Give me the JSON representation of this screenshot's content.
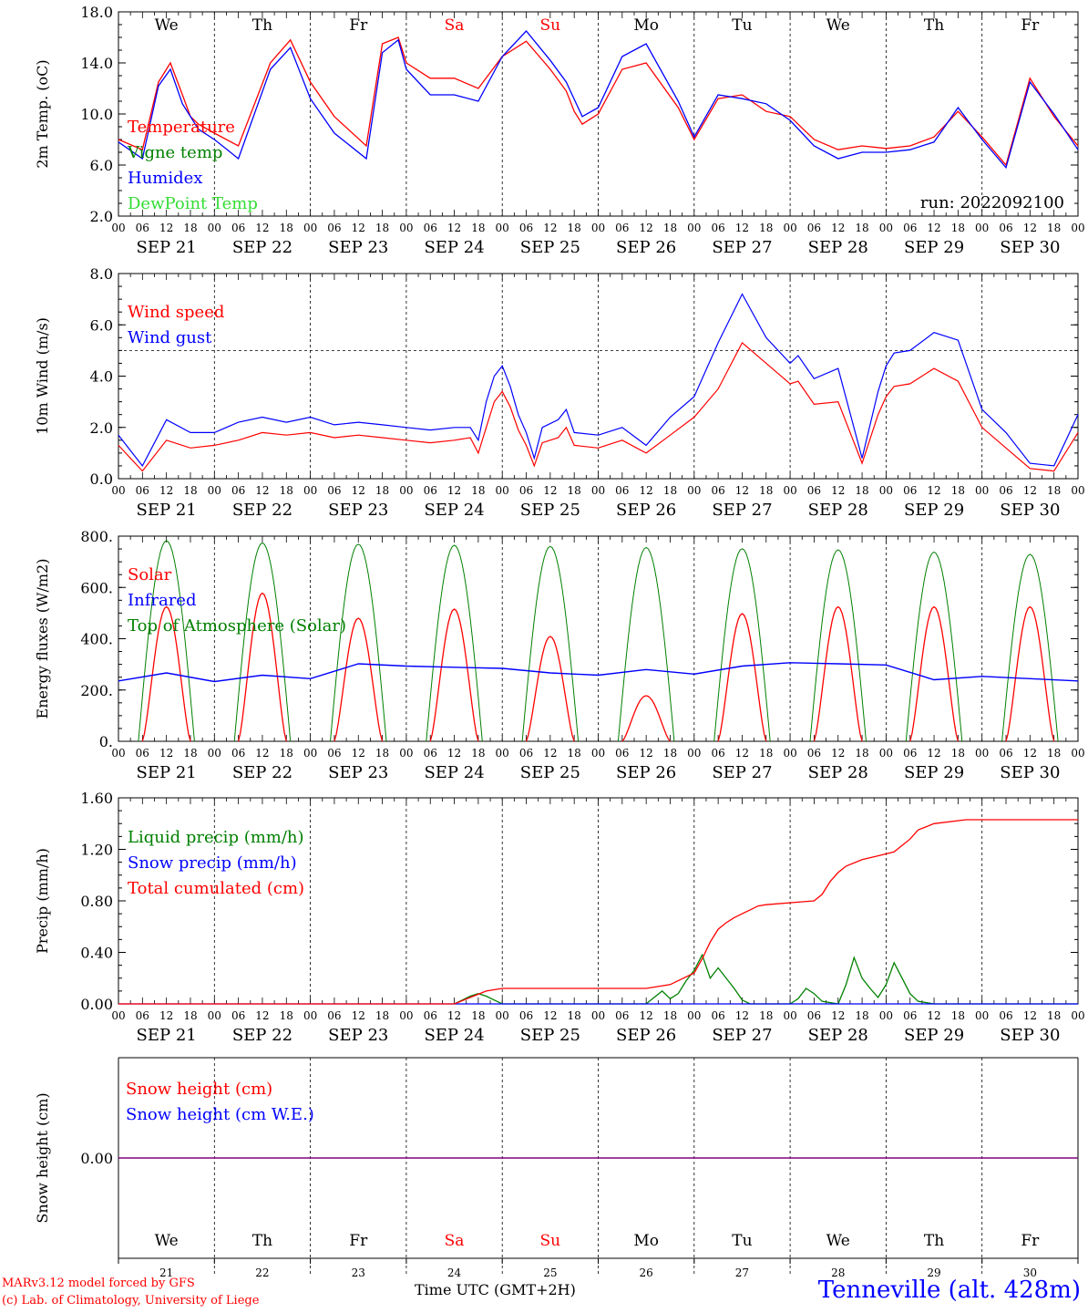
{
  "run_label": "run: 2022092100",
  "footer": {
    "credit_line1": "MARv3.12 model forced by GFS",
    "credit_line2": "(c) Lab. of Climatology, University of Liege",
    "xlabel": "Time UTC (GMT+2H)",
    "station": "Tenneville (alt. 428m)"
  },
  "days": [
    {
      "abbr": "We",
      "date": "SEP 21",
      "num": "21",
      "weekend": false
    },
    {
      "abbr": "Th",
      "date": "SEP 22",
      "num": "22",
      "weekend": false
    },
    {
      "abbr": "Fr",
      "date": "SEP 23",
      "num": "23",
      "weekend": false
    },
    {
      "abbr": "Sa",
      "date": "SEP 24",
      "num": "24",
      "weekend": true
    },
    {
      "abbr": "Su",
      "date": "SEP 25",
      "num": "25",
      "weekend": true
    },
    {
      "abbr": "Mo",
      "date": "SEP 26",
      "num": "26",
      "weekend": false
    },
    {
      "abbr": "Tu",
      "date": "SEP 27",
      "num": "27",
      "weekend": false
    },
    {
      "abbr": "We",
      "date": "SEP 28",
      "num": "28",
      "weekend": false
    },
    {
      "abbr": "Th",
      "date": "SEP 29",
      "num": "29",
      "weekend": false
    },
    {
      "abbr": "Fr",
      "date": "SEP 30",
      "num": "30",
      "weekend": false
    }
  ],
  "hour_ticks": [
    "00",
    "06",
    "12",
    "18"
  ],
  "end_hour_tick": "00",
  "colors": {
    "red": "#ff0000",
    "blue": "#0000ff",
    "darkgreen": "#008000",
    "lightgreen": "#33dd33",
    "purple": "#800080",
    "weekend": "#ff0000"
  },
  "chart_data": [
    {
      "id": "temp",
      "type": "line",
      "ylabel": "2m Temp. (oC)",
      "ylim": [
        2.0,
        18.0
      ],
      "yticks": [
        "2.0",
        "6.0",
        "10.0",
        "14.0",
        "18.0"
      ],
      "x_unit": "hours since SEP 21 00 UTC",
      "series": [
        {
          "name": "Temperature",
          "color": "#ff0000",
          "x": [
            0,
            6,
            10,
            13,
            16,
            18,
            20,
            24,
            30,
            38,
            43,
            48,
            54,
            62,
            66,
            70,
            72,
            78,
            84,
            90,
            96,
            102,
            108,
            112,
            114,
            116,
            120,
            126,
            132,
            140,
            144,
            150,
            156,
            162,
            168,
            174,
            180,
            186,
            192,
            198,
            204,
            210,
            216,
            222,
            228,
            234,
            240
          ],
          "y": [
            8,
            7.2,
            12.5,
            14,
            11.5,
            9.8,
            9.2,
            8.5,
            7.5,
            14,
            15.8,
            12.5,
            9.8,
            7.5,
            15.5,
            16,
            14,
            12.8,
            12.8,
            12,
            14.5,
            15.7,
            13.5,
            11.8,
            10.2,
            9.2,
            10,
            13.5,
            14,
            10.5,
            8,
            11.2,
            11.5,
            10.2,
            9.8,
            8,
            7.2,
            7.5,
            7.3,
            7.5,
            8.2,
            10.2,
            8.2,
            6,
            12.8,
            9.8,
            7.5
          ]
        },
        {
          "name": "Humidex",
          "color": "#0000ff",
          "x": [
            0,
            6,
            10,
            13,
            16,
            20,
            24,
            30,
            38,
            43,
            48,
            54,
            62,
            66,
            70,
            72,
            78,
            84,
            90,
            96,
            102,
            108,
            112,
            116,
            120,
            126,
            132,
            140,
            144,
            150,
            156,
            162,
            168,
            174,
            180,
            186,
            192,
            198,
            204,
            210,
            216,
            222,
            228,
            234,
            240
          ],
          "y": [
            7.8,
            6.5,
            12.2,
            13.5,
            10.8,
            8.8,
            8,
            6.5,
            13.5,
            15.2,
            11.2,
            8.5,
            6.5,
            14.8,
            15.8,
            13.5,
            11.5,
            11.5,
            11,
            14.5,
            16.5,
            14.2,
            12.5,
            9.8,
            10.5,
            14.5,
            15.5,
            11,
            8.2,
            11.5,
            11.2,
            10.8,
            9.5,
            7.5,
            6.5,
            7,
            7,
            7.2,
            7.8,
            10.5,
            8,
            5.8,
            12.5,
            10,
            7.2
          ]
        }
      ]
    },
    {
      "id": "wind",
      "type": "line",
      "ylabel": "10m Wind (m/s)",
      "ylim": [
        0.0,
        8.0
      ],
      "yticks": [
        "0.0",
        "2.0",
        "4.0",
        "6.0",
        "8.0"
      ],
      "reference_line": 5.0,
      "series": [
        {
          "name": "Wind speed",
          "color": "#ff0000",
          "x": [
            0,
            6,
            12,
            18,
            24,
            30,
            36,
            42,
            48,
            54,
            60,
            66,
            72,
            78,
            84,
            88,
            90,
            92,
            94,
            96,
            98,
            100,
            102,
            104,
            106,
            110,
            112,
            114,
            120,
            126,
            132,
            138,
            144,
            150,
            156,
            162,
            168,
            170,
            174,
            180,
            186,
            190,
            192,
            194,
            198,
            204,
            210,
            216,
            222,
            228,
            234,
            240
          ],
          "y": [
            1.3,
            0.3,
            1.5,
            1.2,
            1.3,
            1.5,
            1.8,
            1.7,
            1.8,
            1.6,
            1.7,
            1.6,
            1.5,
            1.4,
            1.5,
            1.6,
            1.0,
            2.0,
            3.0,
            3.4,
            2.8,
            1.9,
            1.3,
            0.5,
            1.4,
            1.6,
            2.0,
            1.3,
            1.2,
            1.5,
            1.0,
            1.7,
            2.4,
            3.5,
            5.3,
            4.5,
            3.7,
            3.8,
            2.9,
            3.0,
            0.6,
            2.5,
            3.2,
            3.6,
            3.7,
            4.3,
            3.8,
            2.0,
            1.2,
            0.4,
            0.3,
            1.8
          ]
        },
        {
          "name": "Wind gust",
          "color": "#0000ff",
          "x": [
            0,
            6,
            12,
            18,
            24,
            30,
            36,
            42,
            48,
            54,
            60,
            66,
            72,
            78,
            84,
            88,
            90,
            92,
            94,
            96,
            98,
            100,
            102,
            104,
            106,
            110,
            112,
            114,
            120,
            126,
            132,
            138,
            144,
            150,
            156,
            162,
            168,
            170,
            174,
            180,
            186,
            190,
            192,
            194,
            198,
            204,
            210,
            216,
            222,
            228,
            234,
            240
          ],
          "y": [
            1.7,
            0.5,
            2.3,
            1.8,
            1.8,
            2.2,
            2.4,
            2.2,
            2.4,
            2.1,
            2.2,
            2.1,
            2.0,
            1.9,
            2.0,
            2.0,
            1.5,
            3.0,
            4.0,
            4.4,
            3.6,
            2.5,
            1.8,
            0.8,
            2.0,
            2.3,
            2.7,
            1.8,
            1.7,
            2.0,
            1.3,
            2.4,
            3.2,
            5.3,
            7.2,
            5.5,
            4.5,
            4.8,
            3.9,
            4.3,
            0.8,
            3.4,
            4.4,
            4.9,
            5.0,
            5.7,
            5.4,
            2.7,
            1.8,
            0.6,
            0.5,
            2.5
          ]
        }
      ]
    },
    {
      "id": "energy",
      "type": "line",
      "ylabel": "Energy fluxes (W/m2)",
      "ylim": [
        0,
        900
      ],
      "yticks": [
        "0.",
        "200.",
        "400.",
        "600.",
        "800."
      ],
      "series": [
        {
          "name": "Solar",
          "color": "#ff0000",
          "daily_peak": [
            590,
            650,
            540,
            580,
            460,
            200,
            560,
            590,
            590,
            590
          ]
        },
        {
          "name": "Infrared",
          "color": "#0000ff",
          "x": [
            0,
            12,
            24,
            36,
            48,
            60,
            72,
            84,
            96,
            108,
            120,
            132,
            144,
            156,
            168,
            180,
            192,
            204,
            216,
            228,
            240
          ],
          "y": [
            265,
            300,
            262,
            290,
            275,
            340,
            330,
            325,
            320,
            300,
            290,
            315,
            295,
            330,
            345,
            340,
            335,
            270,
            285,
            275,
            265
          ]
        },
        {
          "name": "Top of Atmosphere (Solar)",
          "color": "#008000",
          "daily_peak": [
            880,
            870,
            865,
            860,
            855,
            850,
            845,
            840,
            830,
            820
          ]
        }
      ]
    },
    {
      "id": "precip",
      "type": "line",
      "ylabel": "Precip (mm/h)",
      "ylim": [
        0.0,
        1.6
      ],
      "yticks": [
        "0.00",
        "0.40",
        "0.80",
        "1.20",
        "1.60"
      ],
      "series": [
        {
          "name": "Liquid precip (mm/h)",
          "color": "#008000",
          "x": [
            84,
            86,
            88,
            90,
            92,
            94,
            96,
            132,
            134,
            136,
            138,
            140,
            142,
            144,
            146,
            148,
            150,
            154,
            156,
            158,
            162,
            168,
            170,
            172,
            174,
            176,
            180,
            182,
            184,
            186,
            188,
            190,
            192,
            194,
            196,
            198,
            200,
            204,
            240
          ],
          "y": [
            0,
            0.03,
            0.06,
            0.08,
            0.06,
            0.03,
            0,
            0,
            0.05,
            0.1,
            0.04,
            0.08,
            0.18,
            0.26,
            0.38,
            0.2,
            0.28,
            0.12,
            0.03,
            0,
            0,
            0,
            0.04,
            0.12,
            0.08,
            0.02,
            0,
            0.15,
            0.36,
            0.2,
            0.12,
            0.05,
            0.15,
            0.32,
            0.2,
            0.08,
            0.02,
            0,
            0
          ]
        },
        {
          "name": "Snow precip (mm/h)",
          "color": "#0000ff",
          "x": [
            0,
            240
          ],
          "y": [
            0,
            0
          ]
        },
        {
          "name": "Total cumulated (cm)",
          "color": "#ff0000",
          "x": [
            0,
            84,
            88,
            92,
            96,
            132,
            138,
            144,
            146,
            148,
            150,
            152,
            154,
            156,
            158,
            160,
            162,
            170,
            174,
            176,
            178,
            180,
            182,
            186,
            190,
            194,
            198,
            200,
            204,
            212,
            240
          ],
          "y": [
            0,
            0,
            0.05,
            0.1,
            0.12,
            0.12,
            0.15,
            0.24,
            0.35,
            0.48,
            0.58,
            0.63,
            0.67,
            0.7,
            0.73,
            0.76,
            0.77,
            0.79,
            0.8,
            0.85,
            0.95,
            1.02,
            1.07,
            1.12,
            1.15,
            1.18,
            1.28,
            1.35,
            1.4,
            1.43,
            1.43
          ]
        }
      ]
    },
    {
      "id": "snow",
      "type": "line",
      "ylabel": "Snow height (cm)",
      "yticks": [
        "0.00"
      ],
      "series": [
        {
          "name": "Snow height (cm)",
          "color": "#ff0000",
          "x": [
            0,
            240
          ],
          "y": [
            0,
            0
          ]
        },
        {
          "name": "Snow height (cm W.E.)",
          "color": "#0000ff",
          "x": [
            0,
            240
          ],
          "y": [
            0,
            0
          ]
        }
      ]
    }
  ],
  "legends": {
    "temp": [
      {
        "label": "Temperature",
        "color": "#ff0000"
      },
      {
        "label": "Vigne temp",
        "color": "#008000"
      },
      {
        "label": "Humidex",
        "color": "#0000ff"
      },
      {
        "label": "DewPoint Temp",
        "color": "#33dd33"
      }
    ],
    "wind": [
      {
        "label": "Wind speed",
        "color": "#ff0000"
      },
      {
        "label": "Wind gust",
        "color": "#0000ff"
      }
    ],
    "energy": [
      {
        "label": "Solar",
        "color": "#ff0000"
      },
      {
        "label": "Infrared",
        "color": "#0000ff"
      },
      {
        "label": "Top of Atmosphere (Solar)",
        "color": "#008000"
      }
    ],
    "precip": [
      {
        "label": "Liquid precip (mm/h)",
        "color": "#008000"
      },
      {
        "label": "Snow precip (mm/h)",
        "color": "#0000ff"
      },
      {
        "label": "Total cumulated (cm)",
        "color": "#ff0000"
      }
    ],
    "snow": [
      {
        "label": "Snow height (cm)",
        "color": "#ff0000"
      },
      {
        "label": "Snow height (cm W.E.)",
        "color": "#0000ff"
      }
    ]
  }
}
